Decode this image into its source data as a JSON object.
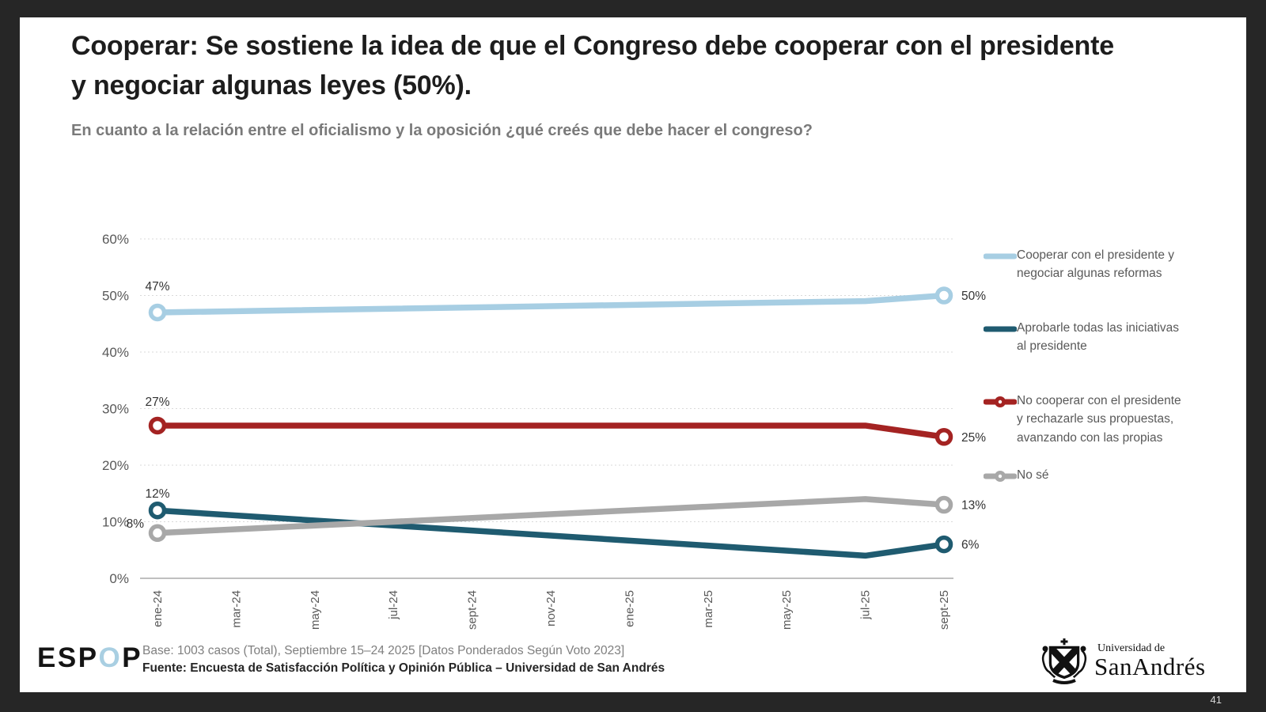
{
  "slide": {
    "title": "Cooperar: Se sostiene la idea de que el Congreso debe cooperar con el presidente y negociar algunas leyes (50%).",
    "subtitle": "En cuanto a la relación entre el oficialismo y la oposición ¿qué creés que debe hacer el congreso?",
    "page_number": "41"
  },
  "footer": {
    "logo": {
      "part1": "ESP",
      "part2": "O",
      "part3": "P"
    },
    "base_line": "Base: 1003 casos (Total), Septiembre 15–24 2025 [Datos Ponderados Según Voto 2023]",
    "source_line": "Fuente: Encuesta de Satisfacción Política y Opinión Pública – Universidad de San Andrés",
    "university": {
      "line1": "Universidad de",
      "line2": "SanAndrés"
    }
  },
  "chart_data": {
    "type": "line",
    "x_labels": [
      "ene-24",
      "mar-24",
      "may-24",
      "jul-24",
      "sept-24",
      "nov-24",
      "ene-25",
      "mar-25",
      "may-25",
      "jul-25",
      "sept-25"
    ],
    "y_axis": {
      "min": 0,
      "max": 60,
      "step": 10
    },
    "y_tick_labels": [
      "0%",
      "10%",
      "20%",
      "30%",
      "40%",
      "50%",
      "60%"
    ],
    "grid": true,
    "legend_position": "right",
    "series": [
      {
        "name": "Cooperar con el presidente y negociar algunas reformas",
        "color": "#a7cee3",
        "legend_marker": "line",
        "values": [
          47,
          null,
          null,
          null,
          null,
          null,
          null,
          null,
          null,
          49,
          50
        ],
        "first_label": "47%",
        "last_label": "50%"
      },
      {
        "name": "Aprobarle todas las iniciativas al presidente",
        "color": "#1f5b70",
        "legend_marker": "line",
        "values": [
          12,
          null,
          null,
          null,
          null,
          null,
          null,
          null,
          null,
          4,
          6
        ],
        "first_label": "12%",
        "last_label": "6%"
      },
      {
        "name": "No cooperar con el presidente y rechazarle sus propuestas, avanzando con las propias",
        "color": "#a42322",
        "legend_marker": "line-dot",
        "values": [
          27,
          null,
          null,
          null,
          null,
          null,
          null,
          null,
          null,
          27,
          25
        ],
        "first_label": "27%",
        "last_label": "25%"
      },
      {
        "name": "No sé",
        "color": "#a8a8a8",
        "legend_marker": "line-dot",
        "values": [
          8,
          null,
          null,
          null,
          null,
          null,
          null,
          null,
          null,
          14,
          13
        ],
        "first_label": "8%",
        "last_label": "13%"
      }
    ]
  }
}
